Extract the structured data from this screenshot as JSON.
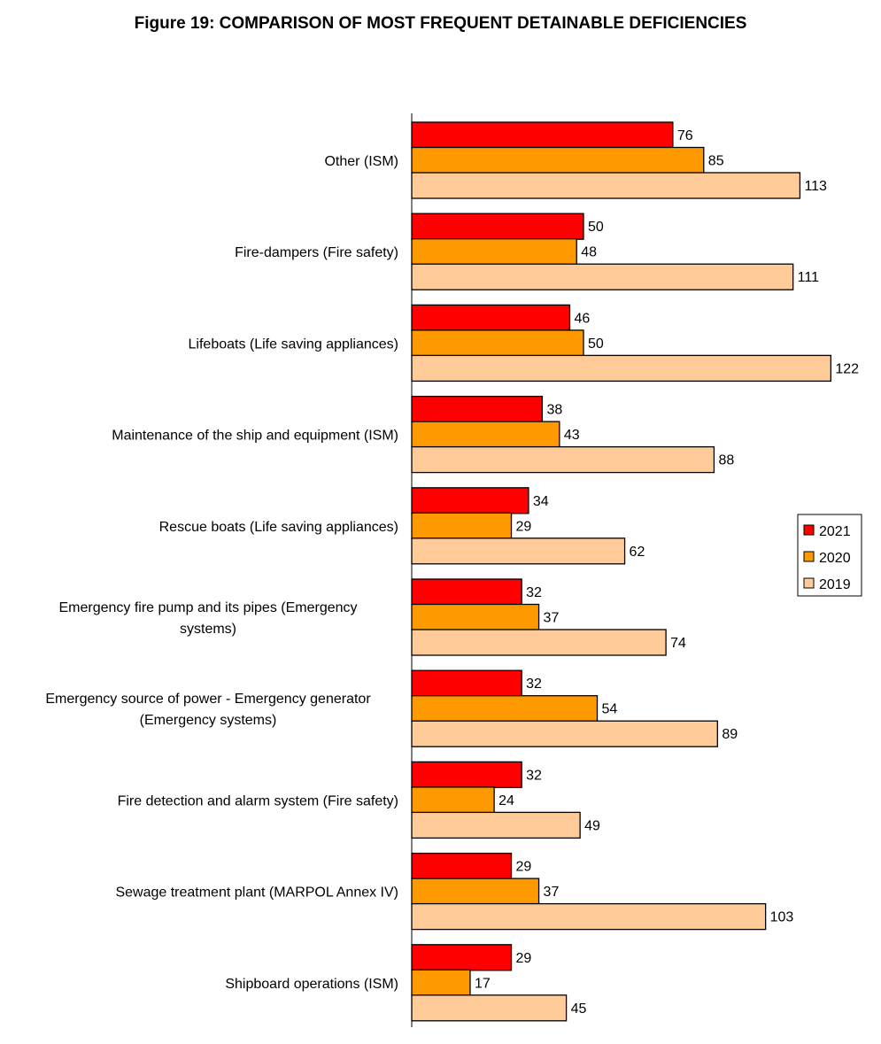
{
  "chart_data": {
    "type": "bar",
    "orientation": "horizontal",
    "title": "Figure 19: COMPARISON OF MOST FREQUENT DETAINABLE DEFICIENCIES",
    "categories": [
      [
        "Other (ISM)"
      ],
      [
        "Fire-dampers (Fire safety)"
      ],
      [
        "Lifeboats (Life saving appliances)"
      ],
      [
        "Maintenance of the ship and equipment (ISM)"
      ],
      [
        "Rescue boats (Life saving appliances)"
      ],
      [
        "Emergency fire pump and its pipes (Emergency",
        "systems)"
      ],
      [
        "Emergency source of power - Emergency generator",
        "(Emergency systems)"
      ],
      [
        "Fire detection and alarm system (Fire safety)"
      ],
      [
        "Sewage treatment plant (MARPOL Annex IV)"
      ],
      [
        "Shipboard operations (ISM)"
      ]
    ],
    "series": [
      {
        "name": "2021",
        "color": "#ff0000",
        "values": [
          76,
          50,
          46,
          38,
          34,
          32,
          32,
          32,
          29,
          29
        ]
      },
      {
        "name": "2020",
        "color": "#ff9900",
        "values": [
          85,
          48,
          50,
          43,
          29,
          37,
          54,
          24,
          37,
          17
        ]
      },
      {
        "name": "2019",
        "color": "#ffcc99",
        "values": [
          113,
          111,
          122,
          88,
          62,
          74,
          89,
          49,
          103,
          45
        ]
      }
    ],
    "xlim": [
      0,
      122
    ],
    "grid": false,
    "legend_position": "right"
  }
}
